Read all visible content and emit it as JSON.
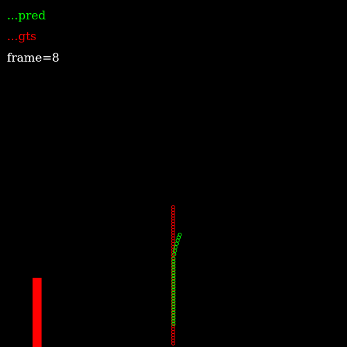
{
  "legend": {
    "pred_label": "...pred",
    "gts_label": "...gts"
  },
  "frame_label": "frame=8",
  "colors": {
    "background": "#000000",
    "pred": "#00ff00",
    "gts": "#ff0000",
    "frame_text": "#ffffff",
    "bar": "#ff0000"
  }
}
